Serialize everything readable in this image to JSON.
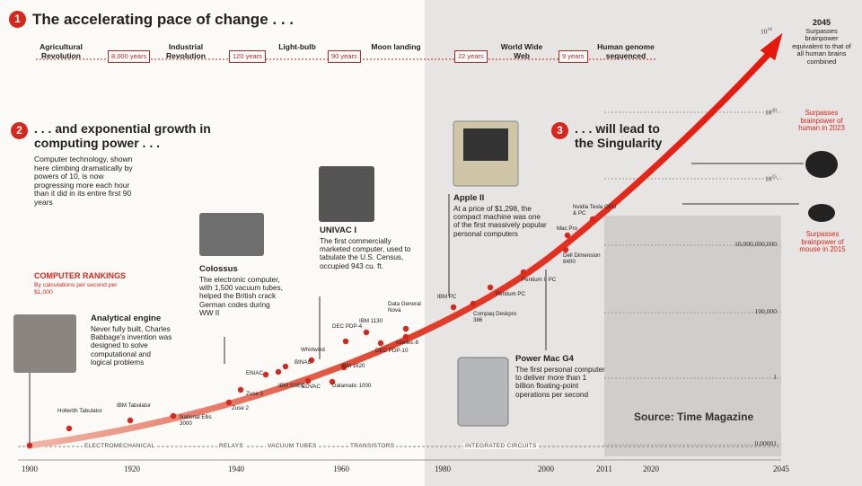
{
  "header": {
    "number": "1",
    "title": "The accelerating pace of change . . ."
  },
  "milestones": [
    "Agricultural Revolution",
    "Industrial Revolution",
    "Light-bulb",
    "Moon landing",
    "World Wide Web",
    "Human genome sequenced"
  ],
  "intervals": [
    "8,000 years",
    "120 years",
    "90 years",
    "22 years",
    "9 years"
  ],
  "section2": {
    "number": "2",
    "title": ". . . and exponential growth in computing power . . .",
    "text": "Computer technology, shown here climbing dramatically by powers of 10, is now progressing more each hour than it did in its entire first 90 years"
  },
  "section3": {
    "number": "3",
    "title": ". . . will lead to the Singularity"
  },
  "rankings": {
    "title": "COMPUTER RANKINGS",
    "subtitle": "By calculations per second per $1,000"
  },
  "callouts": [
    {
      "title": "Analytical engine",
      "text": "Never fully built, Charles Babbage's invention was designed to solve computational and logical problems"
    },
    {
      "title": "Colossus",
      "text": "The electronic computer, with 1,500 vacuum tubes, helped the British crack German codes during WW II"
    },
    {
      "title": "UNIVAC I",
      "text": "The first commercially marketed computer, used to tabulate the U.S. Census, occupied 943 cu. ft."
    },
    {
      "title": "Apple II",
      "text": "At a price of $1,298, the compact machine was one of the first massively popular personal computers"
    },
    {
      "title": "Power Mac G4",
      "text": "The first personal computer to deliver more than 1 billion floating-point operations per second"
    }
  ],
  "points": [
    "Hollerith Tabulator",
    "IBM Tabulator",
    "National Ellis 3000",
    "Zuse 2",
    "Zuse 3",
    "ENIAC",
    "IBM SSEC",
    "BINAC",
    "EDVAC",
    "Whirlwind",
    "Datamatic 1000",
    "IBM 1620",
    "DEC PDP-4",
    "IBM 1130",
    "DEC PDP-10",
    "Data General Nova",
    "Intellec-8",
    "IBM PC",
    "Compaq Deskpro 386",
    "Pentium PC",
    "Pentium II PC",
    "Dell Dimension 8400",
    "Mac Pro",
    "Nvidia Tesla GPU & PC"
  ],
  "y_labels": [
    {
      "base": "10",
      "exponent": "16"
    },
    {
      "base": "10",
      "exponent": "20"
    },
    {
      "base": "10",
      "exponent": "15"
    },
    {
      "base": "10,000,000,000"
    },
    {
      "base": "100,000"
    },
    {
      "base": "1"
    },
    {
      "base": "0.00001"
    }
  ],
  "right_notes": [
    {
      "title": "2045",
      "text": "Surpasses brainpower equivalent to that of all human brains combined"
    },
    {
      "text": "Surpasses brainpower of human in 2023"
    },
    {
      "text": "Surpasses brainpower of mouse in 2015"
    }
  ],
  "eras": [
    "ELECTROMECHANICAL",
    "RELAYS",
    "VACUUM TUBES",
    "TRANSISTORS",
    "INTEGRATED CIRCUITS"
  ],
  "x_labels": [
    "1900",
    "1920",
    "1940",
    "1960",
    "1980",
    "2000",
    "2011",
    "2020",
    "2045"
  ],
  "source": "Source: Time Magazine"
}
